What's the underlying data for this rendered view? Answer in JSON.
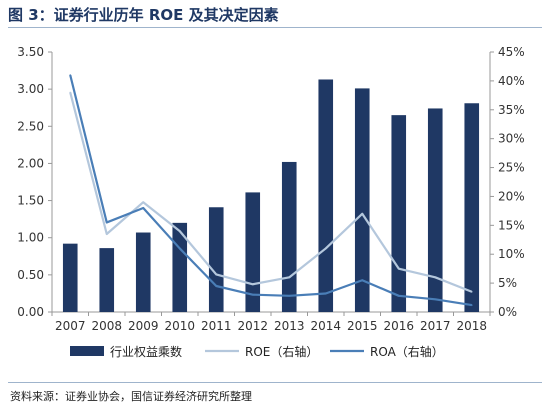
{
  "header": {
    "title": "图 3：证券行业历年 ROE 及其决定因素"
  },
  "footer": {
    "source": "资料来源：证券业协会，国信证券经济研究所整理"
  },
  "chart_data": {
    "type": "bar+line",
    "categories": [
      "2007",
      "2008",
      "2009",
      "2010",
      "2011",
      "2012",
      "2013",
      "2014",
      "2015",
      "2016",
      "2017",
      "2018"
    ],
    "left_axis": {
      "min": 0,
      "max": 3.5,
      "step": 0.5,
      "ticks": [
        "0.00",
        "0.50",
        "1.00",
        "1.50",
        "2.00",
        "2.50",
        "3.00",
        "3.50"
      ]
    },
    "right_axis": {
      "min": 0,
      "max": 45,
      "step": 5,
      "ticks": [
        "0%",
        "5%",
        "10%",
        "15%",
        "20%",
        "25%",
        "30%",
        "35%",
        "40%",
        "45%"
      ]
    },
    "series": [
      {
        "name": "行业权益乘数",
        "type": "bar",
        "axis": "left",
        "color": "#1f3864",
        "values": [
          0.92,
          0.86,
          1.07,
          1.2,
          1.41,
          1.61,
          2.02,
          3.13,
          3.01,
          2.65,
          2.74,
          2.81
        ]
      },
      {
        "name": "ROE（右轴）",
        "type": "line",
        "axis": "right",
        "color": "#b4c7dc",
        "values": [
          38.0,
          13.5,
          19.0,
          14.0,
          6.5,
          4.8,
          6.0,
          11.0,
          17.0,
          7.5,
          6.0,
          3.5
        ]
      },
      {
        "name": "ROA（右轴）",
        "type": "line",
        "axis": "right",
        "color": "#4a7eb7",
        "values": [
          41.0,
          15.5,
          18.0,
          11.0,
          4.5,
          3.0,
          2.8,
          3.2,
          5.5,
          2.8,
          2.2,
          1.2
        ]
      }
    ],
    "grid": false,
    "legend_position": "bottom"
  }
}
